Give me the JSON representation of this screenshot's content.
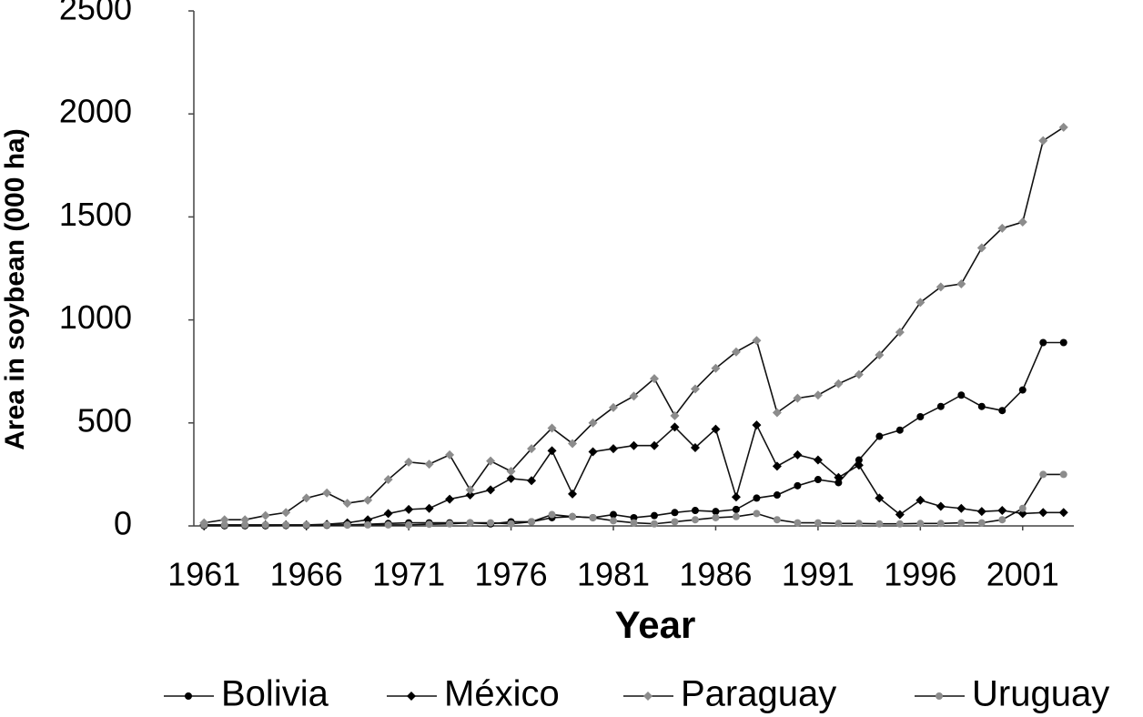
{
  "chart_data": {
    "type": "line",
    "x_label": "Year",
    "y_label": "Area in soybean (000 ha)",
    "x": [
      1961,
      1962,
      1963,
      1964,
      1965,
      1966,
      1967,
      1968,
      1969,
      1970,
      1971,
      1972,
      1973,
      1974,
      1975,
      1976,
      1977,
      1978,
      1979,
      1980,
      1981,
      1982,
      1983,
      1984,
      1985,
      1986,
      1987,
      1988,
      1989,
      1990,
      1991,
      1992,
      1993,
      1994,
      1995,
      1996,
      1997,
      1998,
      1999,
      2000,
      2001,
      2002,
      2003
    ],
    "xlim": [
      1960.5,
      2003.5
    ],
    "xticks": [
      1961,
      1966,
      1971,
      1976,
      1981,
      1986,
      1991,
      1996,
      2001
    ],
    "ylim": [
      0,
      2500
    ],
    "yticks": [
      0,
      500,
      1000,
      1500,
      2000,
      2500
    ],
    "grid": false,
    "legend": "bottom",
    "series": [
      {
        "name": "Bolivia",
        "color": "#000000",
        "marker": "circle",
        "values": [
          1,
          1,
          1,
          1,
          2,
          2,
          3,
          5,
          8,
          12,
          15,
          15,
          15,
          15,
          10,
          20,
          20,
          40,
          45,
          40,
          55,
          40,
          50,
          65,
          75,
          70,
          80,
          135,
          150,
          195,
          225,
          210,
          320,
          435,
          465,
          530,
          580,
          635,
          580,
          560,
          660,
          890,
          890
        ]
      },
      {
        "name": "México",
        "color": "#000000",
        "marker": "diamond",
        "values": [
          5,
          5,
          5,
          5,
          5,
          5,
          8,
          15,
          30,
          60,
          80,
          85,
          130,
          150,
          175,
          230,
          220,
          365,
          155,
          360,
          375,
          390,
          390,
          480,
          380,
          470,
          140,
          490,
          290,
          345,
          320,
          235,
          295,
          135,
          55,
          125,
          95,
          85,
          70,
          75,
          60,
          65,
          65
        ]
      },
      {
        "name": "Paraguay",
        "color": "#8c8c8c",
        "marker": "diamond",
        "values": [
          15,
          30,
          30,
          50,
          65,
          135,
          160,
          110,
          125,
          225,
          310,
          300,
          345,
          175,
          315,
          265,
          375,
          475,
          400,
          500,
          575,
          630,
          715,
          535,
          665,
          765,
          845,
          900,
          550,
          620,
          635,
          690,
          735,
          830,
          940,
          1085,
          1160,
          1175,
          1350,
          1445,
          1475,
          1870,
          1935
        ]
      },
      {
        "name": "Uruguay",
        "color": "#8c8c8c",
        "marker": "circle",
        "values": [
          5,
          5,
          5,
          5,
          5,
          5,
          5,
          5,
          5,
          5,
          5,
          8,
          10,
          15,
          15,
          10,
          20,
          55,
          45,
          40,
          25,
          15,
          10,
          20,
          30,
          40,
          45,
          60,
          30,
          15,
          15,
          12,
          12,
          10,
          10,
          12,
          12,
          15,
          15,
          30,
          85,
          250,
          250
        ]
      }
    ]
  }
}
